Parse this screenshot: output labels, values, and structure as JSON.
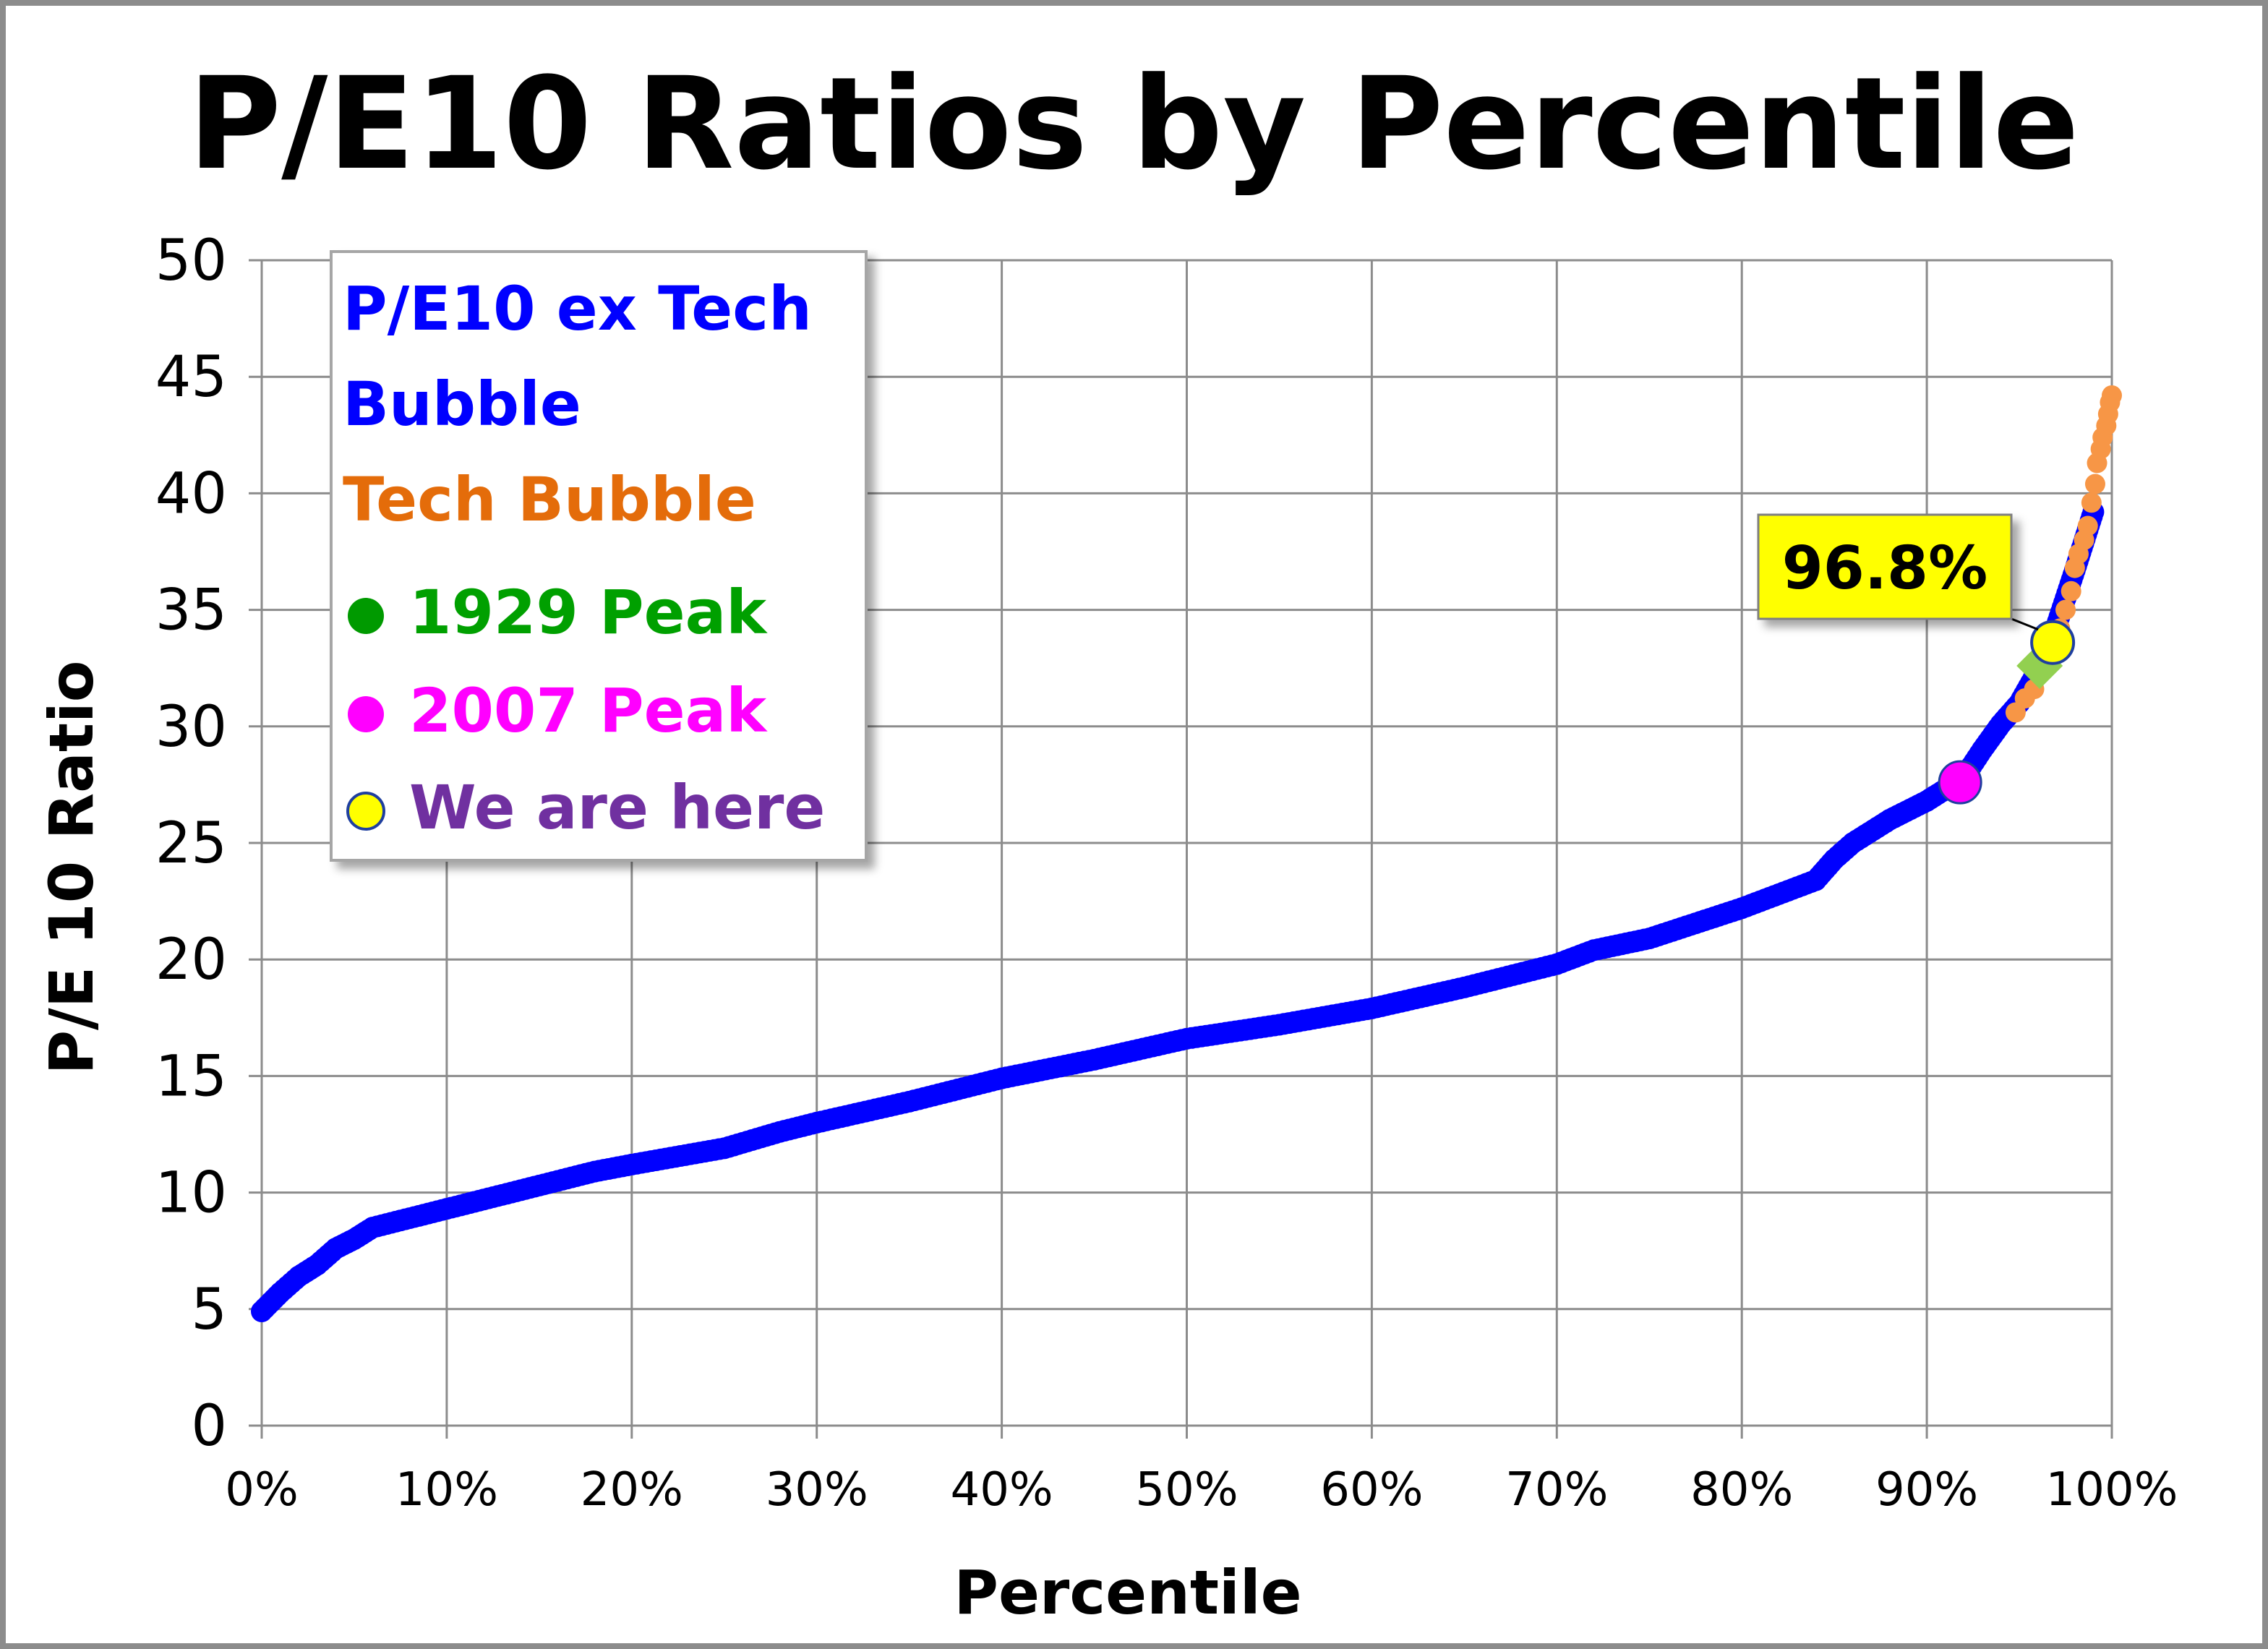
{
  "chart_data": {
    "type": "scatter",
    "title": "P/E10 Ratios by Percentile",
    "xlabel": "Percentile",
    "ylabel": "P/E 10 Ratio",
    "xlim": [
      0,
      100
    ],
    "ylim": [
      0,
      50
    ],
    "x_ticks": [
      "0%",
      "10%",
      "20%",
      "30%",
      "40%",
      "50%",
      "60%",
      "70%",
      "80%",
      "90%",
      "100%"
    ],
    "y_ticks": [
      "0",
      "5",
      "10",
      "15",
      "20",
      "25",
      "30",
      "35",
      "40",
      "45",
      "50"
    ],
    "grid": true,
    "legend_position": "top-left",
    "series": [
      {
        "name": "P/E10 ex Tech Bubble",
        "color": "#0000ff",
        "marker": "circle",
        "curve": {
          "x": [
            0,
            1,
            2,
            3,
            4,
            5,
            6,
            8,
            10,
            12,
            15,
            18,
            20,
            25,
            28,
            30,
            35,
            40,
            45,
            50,
            55,
            60,
            65,
            70,
            72,
            75,
            80,
            84,
            85,
            86,
            88,
            90,
            91,
            92,
            93,
            94,
            95,
            96,
            97,
            98,
            99
          ],
          "y": [
            4.9,
            5.7,
            6.4,
            6.9,
            7.6,
            8.0,
            8.5,
            8.9,
            9.3,
            9.7,
            10.3,
            10.9,
            11.2,
            11.9,
            12.6,
            13.0,
            13.9,
            14.9,
            15.7,
            16.6,
            17.2,
            17.9,
            18.8,
            19.8,
            20.4,
            20.9,
            22.2,
            23.4,
            24.3,
            25.0,
            26.0,
            26.8,
            27.3,
            27.8,
            29.0,
            30.1,
            31.0,
            32.4,
            34.3,
            36.7,
            39.2
          ]
        }
      },
      {
        "name": "Tech Bubble",
        "color": "#f79646",
        "marker": "circle",
        "points": {
          "x": [
            94.8,
            95.3,
            95.8,
            96.3,
            96.8,
            97.2,
            97.5,
            97.8,
            98.0,
            98.2,
            98.5,
            98.7,
            98.9,
            99.1,
            99.2,
            99.4,
            99.5,
            99.7,
            99.8,
            99.9,
            100.0
          ],
          "y": [
            30.6,
            31.2,
            31.6,
            32.4,
            33.2,
            34.2,
            35.0,
            35.8,
            36.8,
            37.4,
            38.0,
            38.6,
            39.6,
            40.4,
            41.3,
            41.9,
            42.4,
            42.9,
            43.4,
            43.9,
            44.2
          ]
        }
      },
      {
        "name": "1929 Peak",
        "color": "#92d050",
        "marker": "diamond",
        "points": {
          "x": [
            96.1
          ],
          "y": [
            32.6
          ]
        }
      },
      {
        "name": "2007 Peak",
        "color": "#ff00ff",
        "marker": "circle",
        "points": {
          "x": [
            91.8
          ],
          "y": [
            27.6
          ]
        }
      },
      {
        "name": "We are here",
        "color": "#ffff00",
        "marker": "circle",
        "points": {
          "x": [
            96.8
          ],
          "y": [
            33.6
          ]
        }
      }
    ],
    "legend": [
      {
        "label": "P/E10 ex Tech",
        "label2": "Bubble",
        "color": "#0000ff",
        "marker": "none"
      },
      {
        "label": "Tech Bubble",
        "color": "#e46c0a",
        "marker": "none"
      },
      {
        "label": "1929 Peak",
        "color": "#00a000",
        "marker": "dot",
        "marker_color": "#009a00"
      },
      {
        "label": "2007 Peak",
        "color": "#ff00ff",
        "marker": "dot",
        "marker_color": "#ff00ff"
      },
      {
        "label": "We are here",
        "color": "#7030a0",
        "marker": "ring",
        "marker_color": "#ffff00"
      }
    ],
    "annotation": {
      "text": "96.8%",
      "background": "#ffff00",
      "points_to": {
        "x": 96.8,
        "y": 33.6
      }
    }
  }
}
